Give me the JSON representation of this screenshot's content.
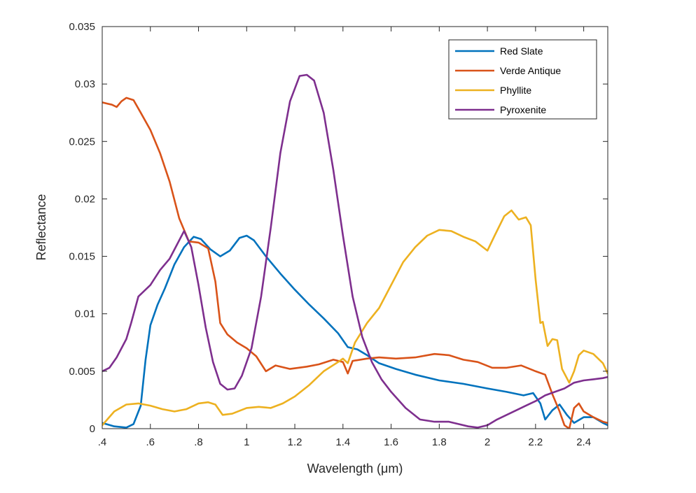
{
  "chart_data": {
    "type": "line",
    "title": "",
    "xlabel": "Wavelength (μm)",
    "ylabel": "Reflectance",
    "xlim": [
      0.4,
      2.5
    ],
    "ylim": [
      0,
      0.035
    ],
    "xticks": [
      0.4,
      0.6,
      0.8,
      1.0,
      1.2,
      1.4,
      1.6,
      1.8,
      2.0,
      2.2,
      2.4
    ],
    "xtick_labels": [
      ".4",
      ".6",
      ".8",
      "1",
      "1.2",
      "1.4",
      "1.6",
      "1.8",
      "2",
      "2.2",
      "2.4"
    ],
    "yticks": [
      0,
      0.005,
      0.01,
      0.015,
      0.02,
      0.025,
      0.03,
      0.035
    ],
    "ytick_labels": [
      "0",
      "0.005",
      "0.01",
      "0.015",
      "0.02",
      "0.025",
      "0.03",
      "0.035"
    ],
    "grid": false,
    "legend_position": "top-right",
    "series": [
      {
        "name": "Red Slate",
        "color": "#0072BD",
        "points": [
          [
            0.4,
            0.0005
          ],
          [
            0.45,
            0.0002
          ],
          [
            0.5,
            0.0001
          ],
          [
            0.53,
            0.0004
          ],
          [
            0.56,
            0.002
          ],
          [
            0.58,
            0.006
          ],
          [
            0.6,
            0.009
          ],
          [
            0.63,
            0.0108
          ],
          [
            0.66,
            0.0122
          ],
          [
            0.7,
            0.0143
          ],
          [
            0.74,
            0.0158
          ],
          [
            0.78,
            0.0167
          ],
          [
            0.81,
            0.0165
          ],
          [
            0.85,
            0.0156
          ],
          [
            0.89,
            0.015
          ],
          [
            0.93,
            0.0155
          ],
          [
            0.97,
            0.0166
          ],
          [
            1.0,
            0.0168
          ],
          [
            1.03,
            0.0164
          ],
          [
            1.08,
            0.015
          ],
          [
            1.14,
            0.0135
          ],
          [
            1.2,
            0.0121
          ],
          [
            1.26,
            0.0108
          ],
          [
            1.32,
            0.0096
          ],
          [
            1.38,
            0.0083
          ],
          [
            1.42,
            0.0071
          ],
          [
            1.46,
            0.0069
          ],
          [
            1.5,
            0.0064
          ],
          [
            1.55,
            0.0057
          ],
          [
            1.62,
            0.0052
          ],
          [
            1.7,
            0.0047
          ],
          [
            1.8,
            0.0042
          ],
          [
            1.9,
            0.0039
          ],
          [
            2.0,
            0.0035
          ],
          [
            2.08,
            0.0032
          ],
          [
            2.15,
            0.0029
          ],
          [
            2.19,
            0.0031
          ],
          [
            2.22,
            0.0022
          ],
          [
            2.24,
            0.0008
          ],
          [
            2.27,
            0.0016
          ],
          [
            2.3,
            0.0021
          ],
          [
            2.33,
            0.0012
          ],
          [
            2.36,
            0.0005
          ],
          [
            2.4,
            0.001
          ],
          [
            2.44,
            0.001
          ],
          [
            2.48,
            0.0005
          ],
          [
            2.5,
            0.0003
          ]
        ]
      },
      {
        "name": "Verde Antique",
        "color": "#D95319",
        "points": [
          [
            0.4,
            0.0284
          ],
          [
            0.42,
            0.0283
          ],
          [
            0.44,
            0.0282
          ],
          [
            0.46,
            0.028
          ],
          [
            0.48,
            0.0285
          ],
          [
            0.5,
            0.0288
          ],
          [
            0.53,
            0.0286
          ],
          [
            0.56,
            0.0275
          ],
          [
            0.6,
            0.026
          ],
          [
            0.64,
            0.024
          ],
          [
            0.68,
            0.0215
          ],
          [
            0.72,
            0.0183
          ],
          [
            0.76,
            0.0163
          ],
          [
            0.8,
            0.0162
          ],
          [
            0.84,
            0.0157
          ],
          [
            0.87,
            0.0128
          ],
          [
            0.89,
            0.0092
          ],
          [
            0.92,
            0.0082
          ],
          [
            0.96,
            0.0075
          ],
          [
            1.0,
            0.007
          ],
          [
            1.04,
            0.0063
          ],
          [
            1.08,
            0.005
          ],
          [
            1.12,
            0.0055
          ],
          [
            1.18,
            0.0052
          ],
          [
            1.25,
            0.0054
          ],
          [
            1.3,
            0.0056
          ],
          [
            1.36,
            0.006
          ],
          [
            1.4,
            0.0058
          ],
          [
            1.42,
            0.0048
          ],
          [
            1.44,
            0.0059
          ],
          [
            1.5,
            0.0061
          ],
          [
            1.55,
            0.0062
          ],
          [
            1.62,
            0.0061
          ],
          [
            1.7,
            0.0062
          ],
          [
            1.78,
            0.0065
          ],
          [
            1.84,
            0.0064
          ],
          [
            1.9,
            0.006
          ],
          [
            1.96,
            0.0058
          ],
          [
            2.02,
            0.0053
          ],
          [
            2.08,
            0.0053
          ],
          [
            2.14,
            0.0055
          ],
          [
            2.2,
            0.005
          ],
          [
            2.24,
            0.0047
          ],
          [
            2.27,
            0.003
          ],
          [
            2.3,
            0.0015
          ],
          [
            2.32,
            0.0003
          ],
          [
            2.34,
            0.0
          ],
          [
            2.36,
            0.0018
          ],
          [
            2.38,
            0.0022
          ],
          [
            2.4,
            0.0015
          ],
          [
            2.44,
            0.001
          ],
          [
            2.48,
            0.0006
          ],
          [
            2.5,
            0.0005
          ]
        ]
      },
      {
        "name": "Phyllite",
        "color": "#EDB120",
        "points": [
          [
            0.4,
            0.0003
          ],
          [
            0.45,
            0.0015
          ],
          [
            0.5,
            0.0021
          ],
          [
            0.55,
            0.0022
          ],
          [
            0.6,
            0.002
          ],
          [
            0.65,
            0.0017
          ],
          [
            0.7,
            0.0015
          ],
          [
            0.75,
            0.0017
          ],
          [
            0.8,
            0.0022
          ],
          [
            0.84,
            0.0023
          ],
          [
            0.87,
            0.0021
          ],
          [
            0.9,
            0.0012
          ],
          [
            0.94,
            0.0013
          ],
          [
            1.0,
            0.0018
          ],
          [
            1.05,
            0.0019
          ],
          [
            1.1,
            0.0018
          ],
          [
            1.15,
            0.0022
          ],
          [
            1.2,
            0.0028
          ],
          [
            1.26,
            0.0038
          ],
          [
            1.32,
            0.005
          ],
          [
            1.38,
            0.0058
          ],
          [
            1.4,
            0.0061
          ],
          [
            1.42,
            0.0057
          ],
          [
            1.45,
            0.0075
          ],
          [
            1.5,
            0.0092
          ],
          [
            1.55,
            0.0105
          ],
          [
            1.6,
            0.0125
          ],
          [
            1.65,
            0.0145
          ],
          [
            1.7,
            0.0158
          ],
          [
            1.75,
            0.0168
          ],
          [
            1.8,
            0.0173
          ],
          [
            1.85,
            0.0172
          ],
          [
            1.9,
            0.0167
          ],
          [
            1.95,
            0.0163
          ],
          [
            2.0,
            0.0155
          ],
          [
            2.03,
            0.0168
          ],
          [
            2.07,
            0.0185
          ],
          [
            2.1,
            0.019
          ],
          [
            2.13,
            0.0182
          ],
          [
            2.16,
            0.0184
          ],
          [
            2.18,
            0.0177
          ],
          [
            2.2,
            0.013
          ],
          [
            2.22,
            0.0092
          ],
          [
            2.23,
            0.0093
          ],
          [
            2.25,
            0.0072
          ],
          [
            2.27,
            0.0078
          ],
          [
            2.29,
            0.0077
          ],
          [
            2.31,
            0.0052
          ],
          [
            2.34,
            0.004
          ],
          [
            2.36,
            0.005
          ],
          [
            2.38,
            0.0064
          ],
          [
            2.4,
            0.0068
          ],
          [
            2.44,
            0.0065
          ],
          [
            2.48,
            0.0057
          ],
          [
            2.5,
            0.0048
          ]
        ]
      },
      {
        "name": "Pyroxenite",
        "color": "#7E2F8E",
        "points": [
          [
            0.4,
            0.005
          ],
          [
            0.43,
            0.0053
          ],
          [
            0.46,
            0.0062
          ],
          [
            0.5,
            0.0078
          ],
          [
            0.52,
            0.0092
          ],
          [
            0.55,
            0.0115
          ],
          [
            0.6,
            0.0125
          ],
          [
            0.64,
            0.0138
          ],
          [
            0.68,
            0.0148
          ],
          [
            0.71,
            0.016
          ],
          [
            0.74,
            0.0172
          ],
          [
            0.77,
            0.0158
          ],
          [
            0.8,
            0.0125
          ],
          [
            0.83,
            0.0088
          ],
          [
            0.86,
            0.0058
          ],
          [
            0.89,
            0.0039
          ],
          [
            0.92,
            0.0034
          ],
          [
            0.95,
            0.0035
          ],
          [
            0.98,
            0.0046
          ],
          [
            1.02,
            0.007
          ],
          [
            1.06,
            0.0115
          ],
          [
            1.1,
            0.0175
          ],
          [
            1.14,
            0.024
          ],
          [
            1.18,
            0.0285
          ],
          [
            1.22,
            0.0307
          ],
          [
            1.25,
            0.0308
          ],
          [
            1.28,
            0.0303
          ],
          [
            1.32,
            0.0275
          ],
          [
            1.36,
            0.0225
          ],
          [
            1.4,
            0.0168
          ],
          [
            1.44,
            0.0115
          ],
          [
            1.48,
            0.008
          ],
          [
            1.52,
            0.0058
          ],
          [
            1.56,
            0.0043
          ],
          [
            1.6,
            0.0032
          ],
          [
            1.66,
            0.0018
          ],
          [
            1.72,
            0.0008
          ],
          [
            1.78,
            0.0006
          ],
          [
            1.84,
            0.0006
          ],
          [
            1.88,
            0.0004
          ],
          [
            1.92,
            0.0002
          ],
          [
            1.96,
            0.0001
          ],
          [
            2.0,
            0.0003
          ],
          [
            2.04,
            0.0008
          ],
          [
            2.08,
            0.0012
          ],
          [
            2.12,
            0.0016
          ],
          [
            2.16,
            0.002
          ],
          [
            2.2,
            0.0024
          ],
          [
            2.24,
            0.0029
          ],
          [
            2.28,
            0.0032
          ],
          [
            2.32,
            0.0035
          ],
          [
            2.36,
            0.004
          ],
          [
            2.4,
            0.0042
          ],
          [
            2.44,
            0.0043
          ],
          [
            2.48,
            0.0044
          ],
          [
            2.5,
            0.0045
          ]
        ]
      }
    ]
  }
}
